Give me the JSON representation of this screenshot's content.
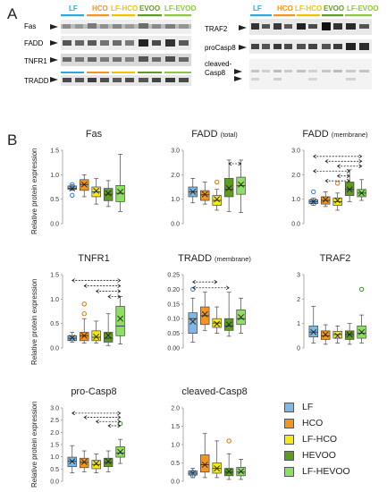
{
  "panel_a": {
    "letter": "A",
    "groups": [
      {
        "label": "LF",
        "color": "#29a9e0"
      },
      {
        "label": "HCO",
        "color": "#f7941d"
      },
      {
        "label": "LF-HCO",
        "color": "#f2c200"
      },
      {
        "label": "EVOO",
        "color": "#5d9c20"
      },
      {
        "label": "LF-EVOO",
        "color": "#8dc63f"
      }
    ],
    "left_blots": [
      {
        "label": "Fas"
      },
      {
        "label": "FADD"
      },
      {
        "label": "TNFR1"
      },
      {
        "label": "TRADD"
      }
    ],
    "right_blots": [
      {
        "label": "TRAF2"
      },
      {
        "label": "proCasp8"
      },
      {
        "label": "cleaved-Casp8",
        "line1": "cleaved-",
        "line2": "Casp8"
      }
    ]
  },
  "panel_b": {
    "letter": "B",
    "ylabel": "Relative protein expression",
    "colors": [
      "#7fb7e6",
      "#f7941d",
      "#f5ea14",
      "#5d9c20",
      "#8dde62"
    ],
    "legend": [
      {
        "label": "LF",
        "color": "#7fb7e6"
      },
      {
        "label": "HCO",
        "color": "#f7941d"
      },
      {
        "label": "LF-HCO",
        "color": "#f5ea14"
      },
      {
        "label": "HEVOO",
        "color": "#5d9c20"
      },
      {
        "label": "LF-HEVOO",
        "color": "#8dde62"
      }
    ]
  },
  "chart_data": [
    {
      "type": "box",
      "title": "Fas",
      "subtitle": "",
      "ylim": [
        0,
        1.5
      ],
      "yticks": [
        "0.0",
        "0.5",
        "1.0",
        "1.5"
      ],
      "boxes": [
        [
          0.68,
          0.7,
          0.72,
          0.77,
          0.8
        ],
        [
          0.55,
          0.68,
          0.8,
          0.9,
          1.0
        ],
        [
          0.4,
          0.55,
          0.65,
          0.75,
          0.92
        ],
        [
          0.35,
          0.47,
          0.6,
          0.72,
          0.88
        ],
        [
          0.25,
          0.45,
          0.62,
          0.78,
          1.42
        ]
      ],
      "means": [
        0.72,
        0.8,
        0.67,
        0.62,
        0.65
      ],
      "outliers": [
        [
          0.58,
          0.8
        ],
        [],
        [],
        [],
        []
      ],
      "brackets": []
    },
    {
      "type": "box",
      "title": "FADD",
      "subtitle": "(total)",
      "ylim": [
        0,
        3
      ],
      "yticks": [
        "0.0",
        "1.0",
        "2.0",
        "3.0"
      ],
      "boxes": [
        [
          0.85,
          1.1,
          1.3,
          1.5,
          1.85
        ],
        [
          0.8,
          0.95,
          1.18,
          1.35,
          1.7
        ],
        [
          0.55,
          0.75,
          0.95,
          1.15,
          1.4
        ],
        [
          0.5,
          1.1,
          1.4,
          1.85,
          2.6
        ],
        [
          0.45,
          1.2,
          1.55,
          1.9,
          2.6
        ]
      ],
      "means": [
        1.3,
        1.2,
        1.0,
        1.45,
        1.6
      ],
      "outliers": [
        [],
        [],
        [
          1.7
        ],
        [],
        []
      ],
      "brackets": [
        [
          3,
          4,
          2.45
        ]
      ]
    },
    {
      "type": "box",
      "title": "FADD",
      "subtitle": "(membrane)",
      "ylim": [
        0,
        3
      ],
      "yticks": [
        "0.0",
        "1.0",
        "2.0",
        "3.0"
      ],
      "boxes": [
        [
          0.75,
          0.82,
          0.9,
          0.98,
          1.05
        ],
        [
          0.7,
          0.8,
          0.95,
          1.1,
          1.3
        ],
        [
          0.55,
          0.75,
          0.9,
          1.05,
          1.25
        ],
        [
          0.9,
          1.15,
          1.4,
          1.7,
          2.2
        ],
        [
          0.95,
          1.1,
          1.25,
          1.4,
          1.8
        ]
      ],
      "means": [
        0.9,
        0.98,
        0.95,
        1.4,
        1.25
      ],
      "outliers": [
        [
          1.3
        ],
        [],
        [
          1.65
        ],
        [],
        []
      ],
      "brackets": [
        [
          0,
          4,
          2.75
        ],
        [
          1,
          4,
          2.55
        ],
        [
          2,
          4,
          2.35
        ],
        [
          0,
          3,
          2.15
        ],
        [
          2,
          3,
          1.95
        ],
        [
          1,
          3,
          1.75
        ]
      ]
    },
    {
      "type": "box",
      "title": "TNFR1",
      "subtitle": "",
      "ylim": [
        0,
        1.5
      ],
      "yticks": [
        "0.0",
        "0.5",
        "1.0",
        "1.5"
      ],
      "boxes": [
        [
          0.12,
          0.15,
          0.2,
          0.25,
          0.32
        ],
        [
          0.1,
          0.15,
          0.25,
          0.32,
          0.6
        ],
        [
          0.1,
          0.15,
          0.22,
          0.35,
          0.55
        ],
        [
          0.05,
          0.12,
          0.2,
          0.32,
          0.7
        ],
        [
          0.08,
          0.25,
          0.45,
          0.85,
          1.05
        ]
      ],
      "means": [
        0.21,
        0.25,
        0.23,
        0.26,
        0.6
      ],
      "outliers": [
        [],
        [
          0.9,
          0.7
        ],
        [],
        [],
        []
      ],
      "brackets": [
        [
          0,
          4,
          1.38
        ],
        [
          1,
          4,
          1.27
        ],
        [
          2,
          4,
          1.16
        ],
        [
          3,
          4,
          1.05
        ]
      ]
    },
    {
      "type": "box",
      "title": "TRADD",
      "subtitle": "(membrane)",
      "ylim": [
        0,
        0.25
      ],
      "yticks": [
        "0.00",
        "0.05",
        "0.10",
        "0.15",
        "0.20",
        "0.25"
      ],
      "boxes": [
        [
          0.02,
          0.05,
          0.1,
          0.12,
          0.17
        ],
        [
          0.06,
          0.08,
          0.11,
          0.14,
          0.19
        ],
        [
          0.05,
          0.07,
          0.085,
          0.1,
          0.14
        ],
        [
          0.04,
          0.06,
          0.075,
          0.1,
          0.19
        ],
        [
          0.05,
          0.08,
          0.1,
          0.13,
          0.17
        ]
      ],
      "means": [
        0.09,
        0.115,
        0.082,
        0.08,
        0.105
      ],
      "outliers": [
        [
          0.2
        ],
        [],
        [],
        [],
        []
      ],
      "brackets": [
        [
          0,
          2,
          0.225
        ],
        [
          0,
          3,
          0.205
        ]
      ]
    },
    {
      "type": "box",
      "title": "TRAF2",
      "subtitle": "",
      "ylim": [
        0,
        3
      ],
      "yticks": [
        "0",
        "1",
        "2",
        "3"
      ],
      "boxes": [
        [
          0.2,
          0.45,
          0.65,
          0.9,
          1.7
        ],
        [
          0.15,
          0.35,
          0.5,
          0.7,
          0.95
        ],
        [
          0.2,
          0.4,
          0.55,
          0.68,
          0.9
        ],
        [
          0.15,
          0.35,
          0.55,
          0.7,
          1.0
        ],
        [
          0.2,
          0.4,
          0.6,
          0.9,
          1.35
        ]
      ],
      "means": [
        0.65,
        0.55,
        0.5,
        0.55,
        0.65
      ],
      "outliers": [
        [],
        [],
        [],
        [],
        [
          2.4
        ]
      ],
      "brackets": []
    },
    {
      "type": "box",
      "title": "pro-Casp8",
      "subtitle": "",
      "ylim": [
        0,
        3.5
      ],
      "yticks": [
        "0.0",
        "0.5",
        "1.0",
        "1.5",
        "2.0",
        "2.5",
        "3.0"
      ],
      "boxes": [
        [
          0.4,
          0.7,
          0.95,
          1.15,
          1.7
        ],
        [
          0.45,
          0.65,
          0.9,
          1.1,
          1.45
        ],
        [
          0.4,
          0.6,
          0.8,
          1.0,
          1.3
        ],
        [
          0.45,
          0.7,
          0.9,
          1.1,
          1.45
        ],
        [
          0.85,
          1.15,
          1.35,
          1.65,
          2.0
        ]
      ],
      "means": [
        0.95,
        0.92,
        0.85,
        0.95,
        1.4
      ],
      "outliers": [
        [],
        [],
        [],
        [],
        [
          2.75
        ]
      ],
      "brackets": [
        [
          0,
          4,
          3.25
        ],
        [
          1,
          4,
          3.05
        ],
        [
          2,
          4,
          2.85
        ],
        [
          3,
          4,
          2.65
        ]
      ]
    },
    {
      "type": "box",
      "title": "cleaved-Casp8",
      "subtitle": "",
      "ylim": [
        0,
        2.0
      ],
      "yticks": [
        "0.0",
        "0.5",
        "1.0",
        "1.5",
        "2.0"
      ],
      "boxes": [
        [
          0.1,
          0.17,
          0.22,
          0.28,
          0.35
        ],
        [
          0.1,
          0.25,
          0.45,
          0.72,
          1.3
        ],
        [
          0.1,
          0.22,
          0.35,
          0.5,
          1.1
        ],
        [
          0.05,
          0.15,
          0.25,
          0.35,
          0.75
        ],
        [
          0.05,
          0.15,
          0.25,
          0.38,
          0.6
        ]
      ],
      "means": [
        0.22,
        0.45,
        0.35,
        0.27,
        0.27
      ],
      "outliers": [
        [
          0.15,
          0.25
        ],
        [],
        [],
        [
          1.1
        ],
        []
      ],
      "brackets": []
    }
  ]
}
